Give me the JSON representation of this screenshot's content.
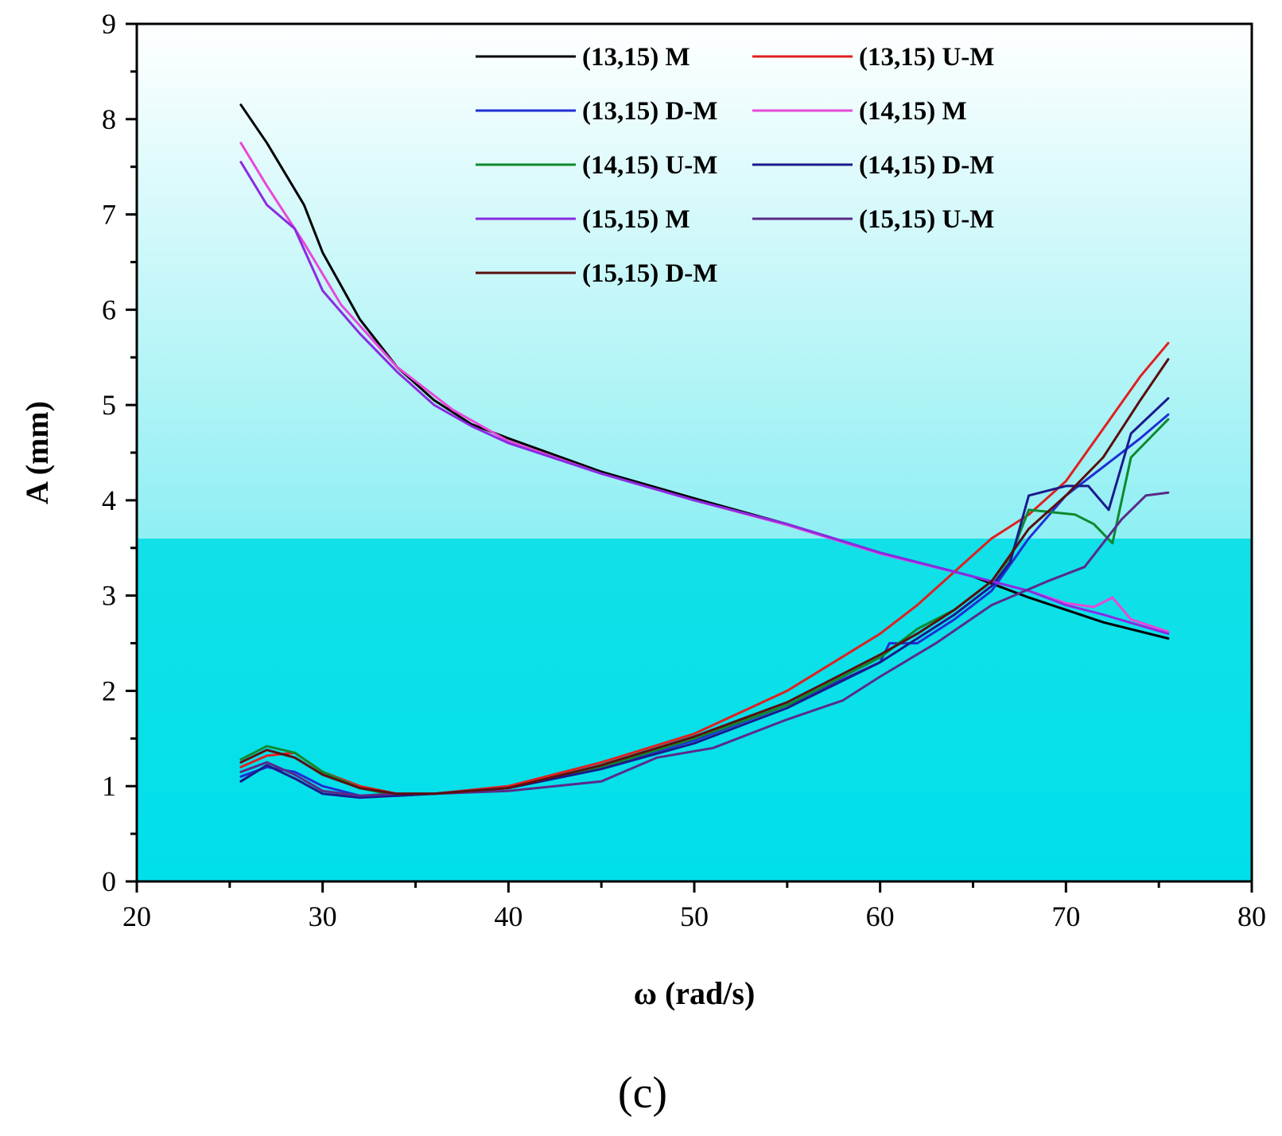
{
  "chart_data": {
    "type": "line",
    "title": "",
    "xlabel": "ω (rad/s)",
    "ylabel": "A (mm)",
    "xlim": [
      20,
      80
    ],
    "ylim": [
      0,
      9
    ],
    "xticks": [
      20,
      30,
      40,
      50,
      60,
      70,
      80
    ],
    "yticks": [
      0,
      1,
      2,
      3,
      4,
      5,
      6,
      7,
      8,
      9
    ],
    "grid": false,
    "legend_position": "top",
    "caption": "(c)",
    "series": [
      {
        "name": "(13,15) M",
        "color": "#000000",
        "x": [
          25.6,
          27,
          29,
          30,
          32,
          34,
          36,
          38,
          40,
          45,
          50,
          55,
          60,
          65,
          68,
          70,
          72,
          75.5
        ],
        "y": [
          8.15,
          7.75,
          7.1,
          6.6,
          5.9,
          5.4,
          5.05,
          4.8,
          4.65,
          4.3,
          4.02,
          3.75,
          3.45,
          3.2,
          2.98,
          2.85,
          2.72,
          2.55
        ]
      },
      {
        "name": "(13,15) U-M",
        "color": "#e02020",
        "x": [
          25.6,
          27,
          28.5,
          30,
          32,
          34,
          36,
          40,
          45,
          50,
          55,
          60,
          62,
          64,
          66,
          68,
          70,
          72,
          74,
          75.5
        ],
        "y": [
          1.2,
          1.32,
          1.35,
          1.15,
          1.0,
          0.92,
          0.92,
          1.0,
          1.25,
          1.55,
          2.0,
          2.6,
          2.9,
          3.25,
          3.6,
          3.85,
          4.2,
          4.75,
          5.3,
          5.65
        ]
      },
      {
        "name": "(13,15) D-M",
        "color": "#1f2fd6",
        "x": [
          25.6,
          27,
          28.5,
          30,
          32,
          34,
          36,
          40,
          45,
          50,
          55,
          60,
          60.5,
          62,
          64,
          66,
          68,
          70,
          72,
          74,
          75.5
        ],
        "y": [
          1.1,
          1.2,
          1.15,
          1.0,
          0.9,
          0.9,
          0.92,
          0.98,
          1.2,
          1.48,
          1.85,
          2.3,
          2.5,
          2.5,
          2.75,
          3.05,
          3.6,
          4.05,
          4.35,
          4.65,
          4.9
        ]
      },
      {
        "name": "(14,15) M",
        "color": "#e848d8",
        "x": [
          25.6,
          27,
          29,
          31,
          34,
          37,
          40,
          45,
          50,
          55,
          60,
          65,
          68,
          70,
          71.5,
          72.5,
          73.5,
          75.5
        ],
        "y": [
          7.75,
          7.3,
          6.7,
          6.05,
          5.4,
          4.95,
          4.62,
          4.28,
          4.0,
          3.74,
          3.44,
          3.2,
          3.05,
          2.92,
          2.88,
          2.98,
          2.75,
          2.62
        ]
      },
      {
        "name": "(14,15) U-M",
        "color": "#0d8a2e",
        "x": [
          25.6,
          27,
          28.5,
          30,
          32,
          34,
          36,
          40,
          45,
          50,
          55,
          60,
          62,
          64,
          66,
          67,
          68,
          69,
          70.5,
          71.5,
          72.5,
          73.5,
          75.5
        ],
        "y": [
          1.28,
          1.42,
          1.35,
          1.15,
          0.98,
          0.9,
          0.92,
          0.98,
          1.2,
          1.5,
          1.85,
          2.35,
          2.65,
          2.85,
          3.15,
          3.4,
          3.9,
          3.88,
          3.85,
          3.75,
          3.55,
          4.45,
          4.85
        ]
      },
      {
        "name": "(14,15) D-M",
        "color": "#1a1a8c",
        "x": [
          25.6,
          27,
          28.5,
          30,
          32,
          34,
          36,
          40,
          45,
          50,
          55,
          60,
          62,
          64,
          66,
          67,
          68,
          70,
          71.2,
          72.3,
          73.5,
          75.5
        ],
        "y": [
          1.05,
          1.22,
          1.08,
          0.92,
          0.88,
          0.9,
          0.92,
          0.98,
          1.18,
          1.45,
          1.82,
          2.3,
          2.55,
          2.8,
          3.1,
          3.35,
          4.05,
          4.15,
          4.15,
          3.9,
          4.7,
          5.07
        ]
      },
      {
        "name": "(15,15) M",
        "color": "#8a2be2",
        "x": [
          25.6,
          27,
          28.5,
          30,
          32,
          34,
          36,
          38,
          40,
          45,
          50,
          55,
          60,
          65,
          68,
          70,
          72,
          75.5
        ],
        "y": [
          7.55,
          7.1,
          6.85,
          6.2,
          5.75,
          5.35,
          5.0,
          4.78,
          4.6,
          4.28,
          4.0,
          3.75,
          3.45,
          3.2,
          3.05,
          2.9,
          2.8,
          2.6
        ]
      },
      {
        "name": "(15,15) U-M",
        "color": "#5a2a8a",
        "x": [
          25.6,
          27,
          28.5,
          30,
          32,
          34,
          36,
          40,
          45,
          48,
          51,
          55,
          58,
          60,
          63,
          66,
          69,
          71,
          73,
          74.3,
          75.5
        ],
        "y": [
          1.15,
          1.25,
          1.12,
          0.95,
          0.9,
          0.92,
          0.92,
          0.95,
          1.05,
          1.3,
          1.4,
          1.7,
          1.9,
          2.15,
          2.5,
          2.9,
          3.15,
          3.3,
          3.8,
          4.05,
          4.08
        ]
      },
      {
        "name": "(15,15) D-M",
        "color": "#5a0e0e",
        "x": [
          25.6,
          27,
          28.5,
          30,
          32,
          34,
          36,
          40,
          45,
          50,
          55,
          60,
          62,
          64,
          66,
          68,
          70,
          72,
          74,
          75.5
        ],
        "y": [
          1.25,
          1.38,
          1.3,
          1.12,
          0.98,
          0.92,
          0.92,
          0.98,
          1.22,
          1.52,
          1.88,
          2.38,
          2.6,
          2.85,
          3.15,
          3.7,
          4.05,
          4.45,
          5.05,
          5.48
        ]
      }
    ]
  }
}
